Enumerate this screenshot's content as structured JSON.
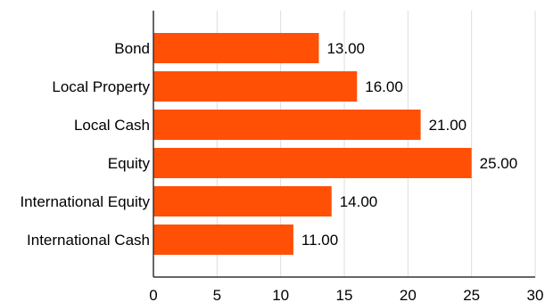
{
  "chart_data": {
    "type": "bar",
    "orientation": "horizontal",
    "categories": [
      "Bond",
      "Local Property",
      "Local Cash",
      "Equity",
      "International Equity",
      "International Cash"
    ],
    "values": [
      13,
      16,
      21,
      25,
      14,
      11
    ],
    "value_labels": [
      "13.00",
      "16.00",
      "21.00",
      "25.00",
      "14.00",
      "11.00"
    ],
    "xlim": [
      0,
      30
    ],
    "x_ticks": [
      0,
      5,
      10,
      15,
      20,
      25,
      30
    ],
    "x_tick_labels": [
      "0",
      "5",
      "10",
      "15",
      "20",
      "25",
      "30"
    ],
    "grid": "vertical",
    "legend": "none",
    "bar_color": "#ff5006",
    "grid_color": "#dddddd",
    "axis_color": "#333333"
  }
}
